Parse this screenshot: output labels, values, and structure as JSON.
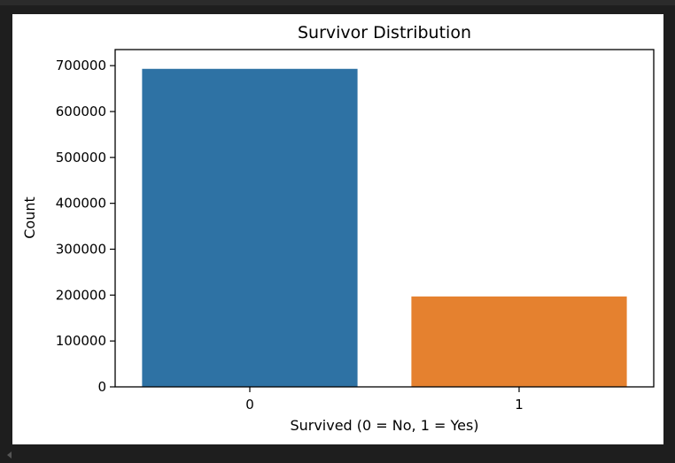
{
  "chart_data": {
    "type": "bar",
    "title": "Survivor Distribution",
    "xlabel": "Survived (0 = No, 1 = Yes)",
    "ylabel": "Count",
    "categories": [
      "0",
      "1"
    ],
    "values": [
      693000,
      197000
    ],
    "colors": [
      "#2e72a4",
      "#e5812f"
    ],
    "ylim": [
      0,
      735000
    ],
    "yticks": [
      0,
      100000,
      200000,
      300000,
      400000,
      500000,
      600000,
      700000
    ],
    "ytick_labels": [
      "0",
      "100000",
      "200000",
      "300000",
      "400000",
      "500000",
      "600000",
      "700000"
    ],
    "grid": false,
    "legend": "none"
  }
}
